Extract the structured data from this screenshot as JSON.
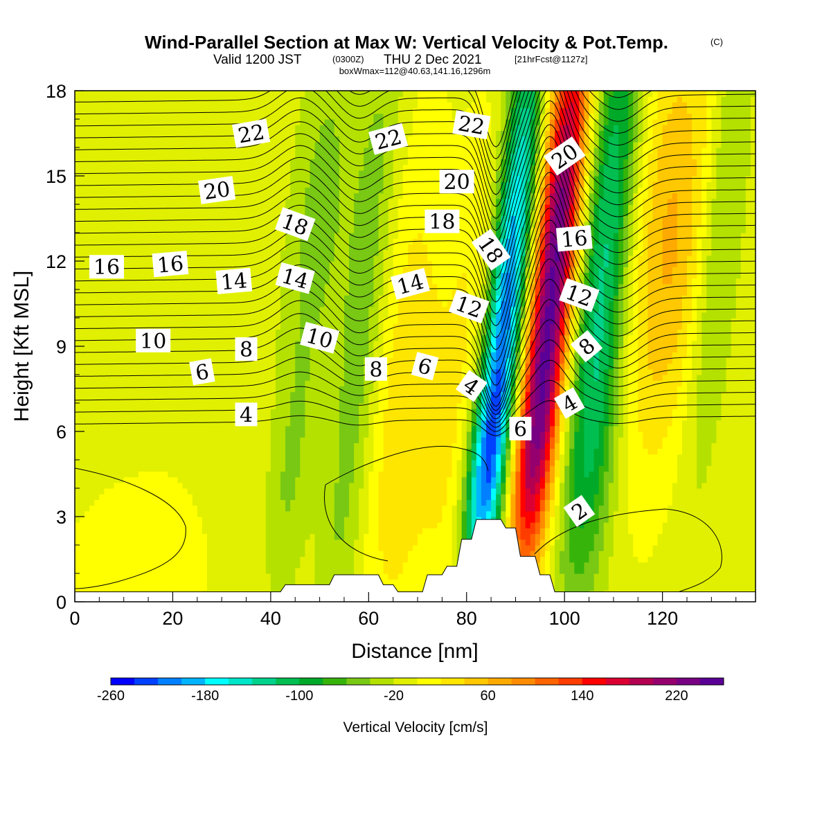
{
  "header": {
    "title": "Wind-Parallel Section at Max W: Vertical Velocity & Pot.Temp.",
    "title_mark": "(C)",
    "valid_prefix": "Valid 1200 JST",
    "valid_utc": "(0300Z)",
    "valid_date": "THU 2 Dec 2021",
    "forecast_tag": "[21hrFcst@1127z]",
    "box_info": "boxWmax=112@40.63,141.16,1296m"
  },
  "chart_data": {
    "type": "heatmap",
    "xlabel": "Distance [nm]",
    "ylabel": "Height [Kft MSL]",
    "xlim": [
      0,
      139
    ],
    "ylim": [
      0,
      18
    ],
    "x_ticks": [
      0,
      20,
      40,
      60,
      80,
      100,
      120
    ],
    "y_ticks": [
      0,
      3,
      6,
      9,
      12,
      15,
      18
    ],
    "x_tick_labels": [
      "0",
      "20",
      "40",
      "60",
      "80",
      "100",
      "120"
    ],
    "y_tick_labels": [
      "0",
      "3",
      "6",
      "9",
      "12",
      "15",
      "18"
    ],
    "colorbar": {
      "title": "Vertical Velocity [cm/s]",
      "min": -260,
      "max": 260,
      "step": 20,
      "tick_values": [
        -260,
        -180,
        -100,
        -20,
        60,
        140,
        220
      ],
      "tick_labels": [
        "-260",
        "-180",
        "-100",
        "-20",
        "60",
        "140",
        "220"
      ],
      "colors": [
        "#0000ff",
        "#0040ff",
        "#0080ff",
        "#00b4ff",
        "#00ffff",
        "#00e6c8",
        "#00d28c",
        "#00be50",
        "#00aa28",
        "#36b40a",
        "#78c814",
        "#b4e100",
        "#e1f000",
        "#ffff00",
        "#ffe600",
        "#ffc800",
        "#ffaa00",
        "#ff8c00",
        "#ff6400",
        "#ff3c00",
        "#ff0000",
        "#dc0032",
        "#b40050",
        "#96006e",
        "#780082",
        "#5a0096"
      ]
    },
    "vertical_velocity_field": {
      "units": "cm/s",
      "background": -10,
      "cells": [
        {
          "x": 16,
          "z": 0.5,
          "sx": 16,
          "sz": 3.5,
          "w": 15
        },
        {
          "x": 25,
          "z": 12,
          "sx": 14,
          "sz": 6,
          "w": 6
        },
        {
          "x": 48,
          "z": 13,
          "sx": 4.5,
          "sz": 5,
          "w": -45
        },
        {
          "x": 47,
          "z": 4,
          "sx": 3,
          "sz": 3,
          "w": -30
        },
        {
          "x": 52,
          "z": 9,
          "sx": 6,
          "sz": 5,
          "w": 8
        },
        {
          "x": 59,
          "z": 9,
          "sx": 3.5,
          "sz": 9,
          "w": -55
        },
        {
          "x": 65,
          "z": 10,
          "sx": 5,
          "sz": 8,
          "w": 20
        },
        {
          "x": 71,
          "z": 6,
          "sx": 6,
          "sz": 6,
          "w": 35
        },
        {
          "x": 80,
          "z": 8,
          "sx": 3,
          "sz": 7,
          "w": 25
        },
        {
          "x": 88,
          "z": 10,
          "sx": 2.6,
          "sz": 7,
          "w": -200
        },
        {
          "x": 86,
          "z": 4.5,
          "sx": 2.5,
          "sz": 2.5,
          "w": -90
        },
        {
          "x": 97,
          "z": 12,
          "sx": 3,
          "sz": 6.5,
          "w": 250
        },
        {
          "x": 96,
          "z": 5,
          "sx": 3,
          "sz": 3,
          "w": 90
        },
        {
          "x": 107,
          "z": 13,
          "sx": 3.5,
          "sz": 7,
          "w": -110
        },
        {
          "x": 109,
          "z": 5,
          "sx": 4,
          "sz": 4,
          "w": -45
        },
        {
          "x": 118,
          "z": 13,
          "sx": 5,
          "sz": 6,
          "w": 60
        },
        {
          "x": 124,
          "z": 12,
          "sx": 4,
          "sz": 5,
          "w": 30
        },
        {
          "x": 130,
          "z": 13,
          "sx": 3,
          "sz": 6,
          "w": -40
        }
      ]
    },
    "terrain_kft": {
      "distance_nm": [
        0,
        42,
        43,
        52,
        53,
        62,
        63,
        65,
        66,
        71,
        72,
        75,
        76,
        78,
        79,
        81,
        82,
        87,
        88,
        90,
        91,
        94,
        95,
        97,
        98,
        139
      ],
      "height_kft": [
        0.35,
        0.35,
        0.6,
        0.6,
        0.95,
        0.95,
        0.6,
        0.6,
        0.35,
        0.35,
        0.95,
        0.95,
        1.25,
        1.25,
        2.2,
        2.2,
        2.9,
        2.9,
        2.6,
        2.6,
        1.6,
        1.6,
        0.95,
        0.95,
        0.35,
        0.35
      ]
    },
    "potential_temperature_labels": [
      {
        "text": "22",
        "x": 36,
        "z": 16.5,
        "rot": -10
      },
      {
        "text": "22",
        "x": 64,
        "z": 16.3,
        "rot": -15
      },
      {
        "text": "22",
        "x": 81,
        "z": 16.8,
        "rot": 10
      },
      {
        "text": "20",
        "x": 29,
        "z": 14.5,
        "rot": -8
      },
      {
        "text": "20",
        "x": 78,
        "z": 14.8,
        "rot": 0
      },
      {
        "text": "20",
        "x": 100,
        "z": 15.7,
        "rot": -35
      },
      {
        "text": "18",
        "x": 45,
        "z": 13.3,
        "rot": 20
      },
      {
        "text": "18",
        "x": 75,
        "z": 13.4,
        "rot": 0
      },
      {
        "text": "18",
        "x": 85,
        "z": 12.4,
        "rot": 55
      },
      {
        "text": "16",
        "x": 6.5,
        "z": 11.8,
        "rot": 0
      },
      {
        "text": "16",
        "x": 19.5,
        "z": 11.9,
        "rot": -5
      },
      {
        "text": "16",
        "x": 102,
        "z": 12.8,
        "rot": -5
      },
      {
        "text": "14",
        "x": 32.5,
        "z": 11.3,
        "rot": -5
      },
      {
        "text": "14",
        "x": 45,
        "z": 11.4,
        "rot": 15
      },
      {
        "text": "14",
        "x": 68.5,
        "z": 11.2,
        "rot": -15
      },
      {
        "text": "12",
        "x": 80.5,
        "z": 10.4,
        "rot": 20
      },
      {
        "text": "12",
        "x": 103,
        "z": 10.8,
        "rot": 20
      },
      {
        "text": "10",
        "x": 16,
        "z": 9.2,
        "rot": 0
      },
      {
        "text": "10",
        "x": 50,
        "z": 9.3,
        "rot": 15
      },
      {
        "text": "8",
        "x": 35,
        "z": 8.9,
        "rot": 0
      },
      {
        "text": "8",
        "x": 61.5,
        "z": 8.2,
        "rot": 0
      },
      {
        "text": "8",
        "x": 104.5,
        "z": 9.0,
        "rot": -40
      },
      {
        "text": "6",
        "x": 26,
        "z": 8.1,
        "rot": -10
      },
      {
        "text": "6",
        "x": 71.5,
        "z": 8.3,
        "rot": 15
      },
      {
        "text": "6",
        "x": 91,
        "z": 6.1,
        "rot": 0
      },
      {
        "text": "4",
        "x": 35,
        "z": 6.6,
        "rot": 0
      },
      {
        "text": "4",
        "x": 81,
        "z": 7.6,
        "rot": 35
      },
      {
        "text": "4",
        "x": 101,
        "z": 7.0,
        "rot": -30
      },
      {
        "text": "2",
        "x": 103,
        "z": 3.2,
        "rot": -35
      }
    ]
  }
}
